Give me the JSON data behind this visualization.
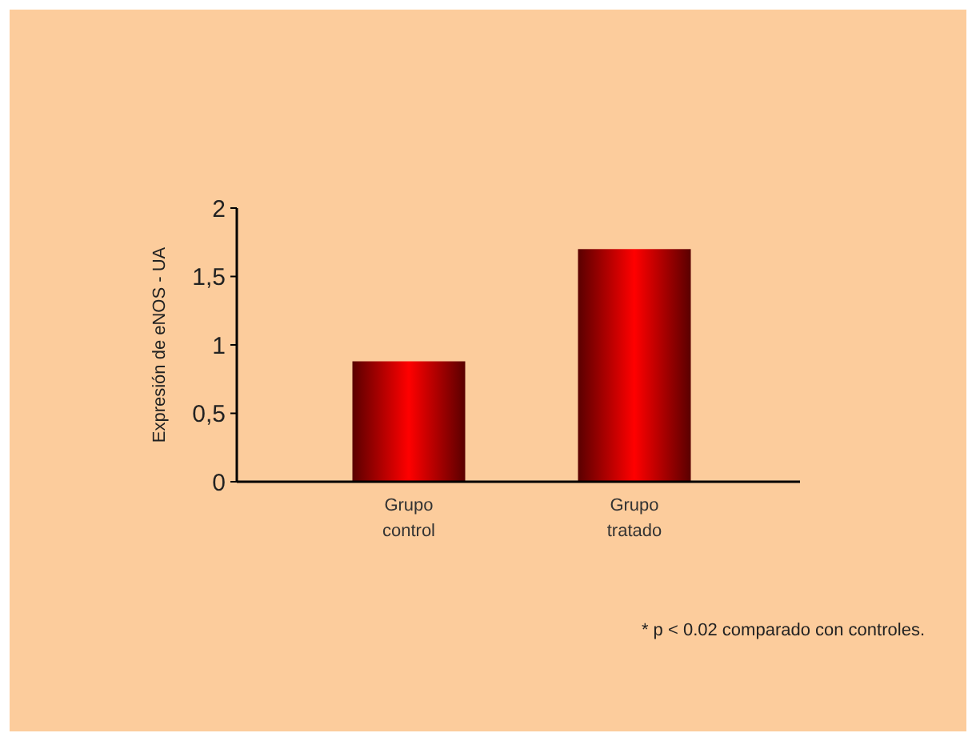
{
  "chart_data": {
    "type": "bar",
    "ylabel": "Expresión de eNOS - UA",
    "categories": [
      "Grupo control",
      "Grupo tratado"
    ],
    "values": [
      0.88,
      1.7
    ],
    "color": "#ff0000",
    "ylim": [
      0,
      2
    ],
    "yticks": [
      0,
      {
        "value": 0.5,
        "label": "0,5"
      },
      1,
      {
        "value": 1.5,
        "label": "1,5"
      },
      2
    ],
    "grid": false,
    "annotations": [
      "* p < 0.02 comparado con controles."
    ]
  }
}
